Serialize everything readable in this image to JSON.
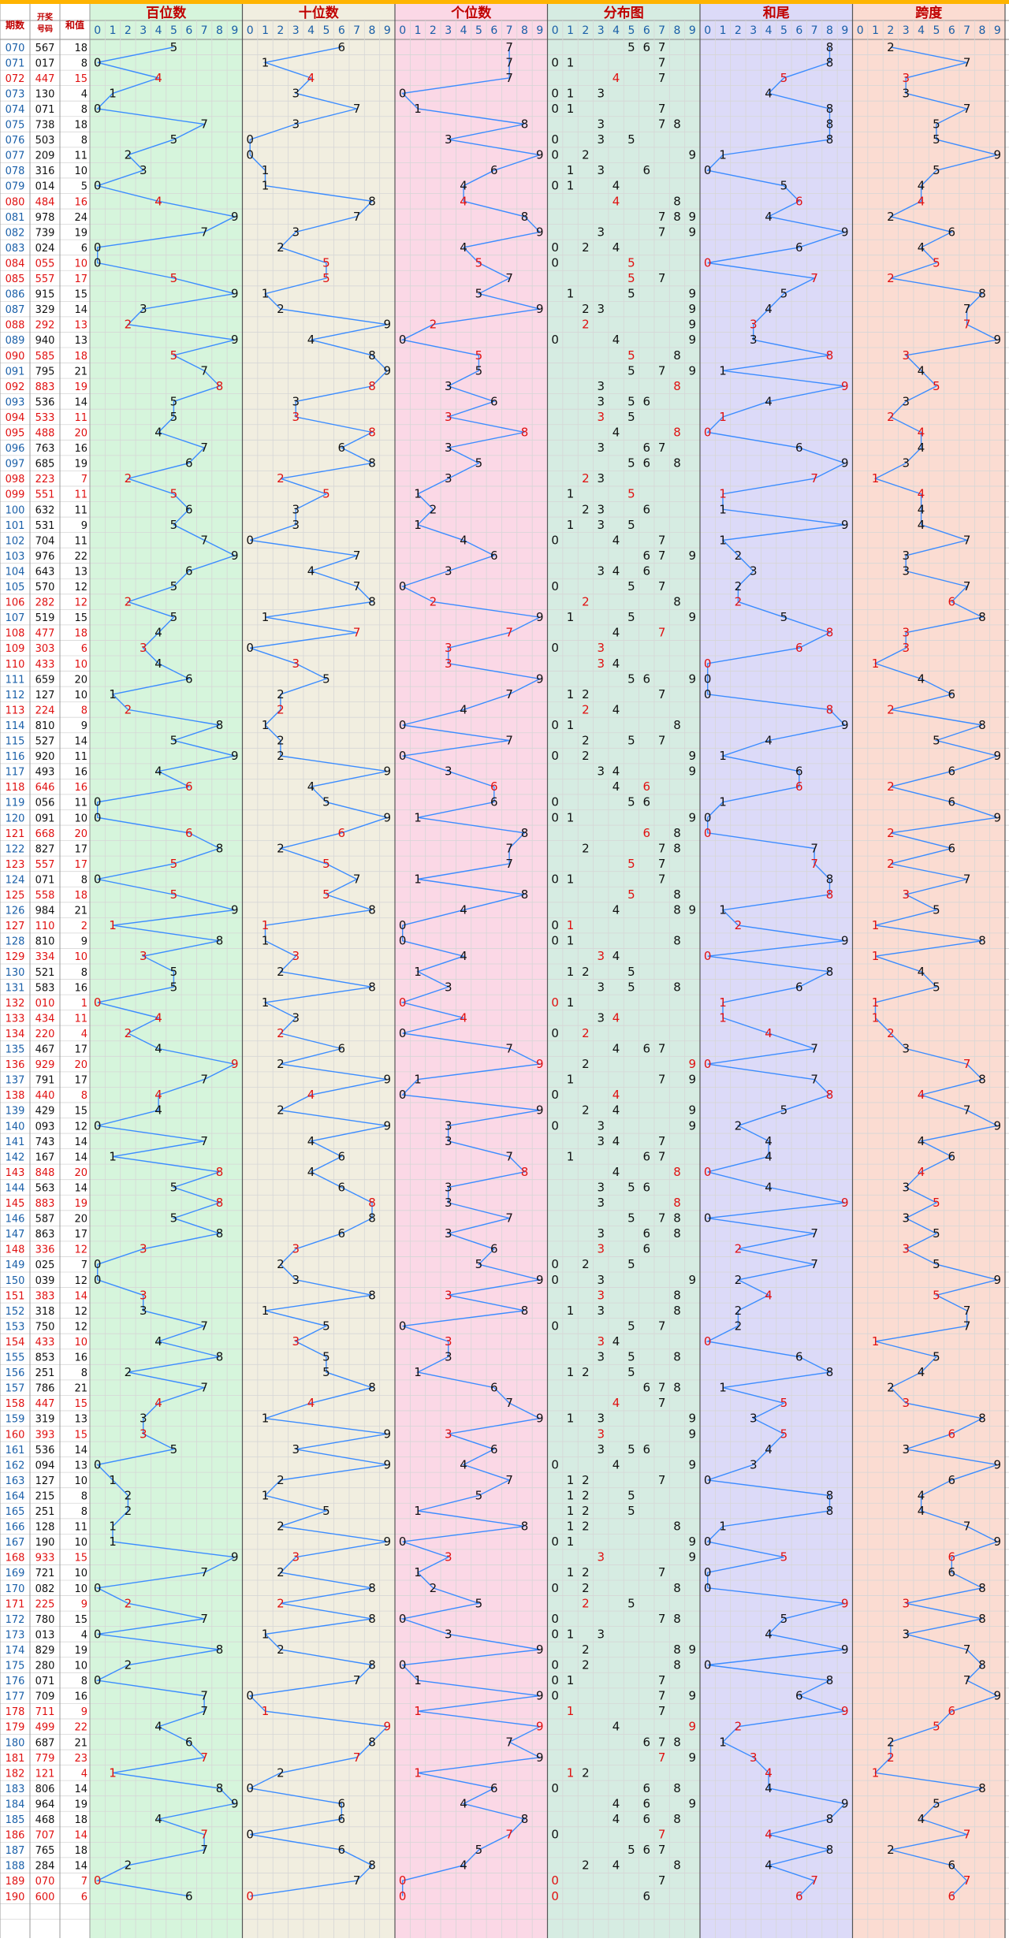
{
  "header": {
    "period_label": "期数",
    "draw_label_1": "开奖",
    "draw_label_2": "号码",
    "sum_label": "和值",
    "sections": [
      {
        "key": "hundreds",
        "title": "百位数"
      },
      {
        "key": "tens",
        "title": "十位数"
      },
      {
        "key": "ones",
        "title": "个位数"
      },
      {
        "key": "dist",
        "title": "分布图"
      },
      {
        "key": "tail",
        "title": "和尾"
      },
      {
        "key": "span",
        "title": "跨度"
      }
    ],
    "digits": [
      "0",
      "1",
      "2",
      "3",
      "4",
      "5",
      "6",
      "7",
      "8",
      "9"
    ]
  },
  "colors": {
    "top_bar": "#ffb400",
    "grid": "#d6d6d6",
    "period": "#1a5fa8",
    "red": "#e01010",
    "black": "#111111",
    "line": "#3b8cff",
    "section_titles": "#c00000",
    "digit_labels": "#1a5fa8",
    "bg_left": "#ffffff",
    "bg_hundreds": "#d6f5dc",
    "bg_tens": "#f1eee0",
    "bg_ones": "#fbd8e6",
    "bg_dist": "#d6ece2",
    "bg_tail": "#dcdaf8",
    "bg_span": "#fbdcd2"
  },
  "chart_data": {
    "type": "table",
    "description_fields": [
      "period",
      "number",
      "sum",
      "tail",
      "span"
    ],
    "rows": [
      {
        "period": "070",
        "number": "567",
        "sum": 18
      },
      {
        "period": "071",
        "number": "017",
        "sum": 8
      },
      {
        "period": "072",
        "number": "447",
        "sum": 15
      },
      {
        "period": "073",
        "number": "130",
        "sum": 4
      },
      {
        "period": "074",
        "number": "071",
        "sum": 8
      },
      {
        "period": "075",
        "number": "738",
        "sum": 18
      },
      {
        "period": "076",
        "number": "503",
        "sum": 8
      },
      {
        "period": "077",
        "number": "209",
        "sum": 11
      },
      {
        "period": "078",
        "number": "316",
        "sum": 10
      },
      {
        "period": "079",
        "number": "014",
        "sum": 5
      },
      {
        "period": "080",
        "number": "484",
        "sum": 16
      },
      {
        "period": "081",
        "number": "978",
        "sum": 24
      },
      {
        "period": "082",
        "number": "739",
        "sum": 19
      },
      {
        "period": "083",
        "number": "024",
        "sum": 6
      },
      {
        "period": "084",
        "number": "055",
        "sum": 10
      },
      {
        "period": "085",
        "number": "557",
        "sum": 17
      },
      {
        "period": "086",
        "number": "915",
        "sum": 15
      },
      {
        "period": "087",
        "number": "329",
        "sum": 14
      },
      {
        "period": "088",
        "number": "292",
        "sum": 13
      },
      {
        "period": "089",
        "number": "940",
        "sum": 13
      },
      {
        "period": "090",
        "number": "585",
        "sum": 18
      },
      {
        "period": "091",
        "number": "795",
        "sum": 21
      },
      {
        "period": "092",
        "number": "883",
        "sum": 19
      },
      {
        "period": "093",
        "number": "536",
        "sum": 14
      },
      {
        "period": "094",
        "number": "533",
        "sum": 11
      },
      {
        "period": "095",
        "number": "488",
        "sum": 20
      },
      {
        "period": "096",
        "number": "763",
        "sum": 16
      },
      {
        "period": "097",
        "number": "685",
        "sum": 19
      },
      {
        "period": "098",
        "number": "223",
        "sum": 7
      },
      {
        "period": "099",
        "number": "551",
        "sum": 11
      },
      {
        "period": "100",
        "number": "632",
        "sum": 11
      },
      {
        "period": "101",
        "number": "531",
        "sum": 9
      },
      {
        "period": "102",
        "number": "704",
        "sum": 11
      },
      {
        "period": "103",
        "number": "976",
        "sum": 22
      },
      {
        "period": "104",
        "number": "643",
        "sum": 13
      },
      {
        "period": "105",
        "number": "570",
        "sum": 12
      },
      {
        "period": "106",
        "number": "282",
        "sum": 12
      },
      {
        "period": "107",
        "number": "519",
        "sum": 15
      },
      {
        "period": "108",
        "number": "477",
        "sum": 18
      },
      {
        "period": "109",
        "number": "303",
        "sum": 6
      },
      {
        "period": "110",
        "number": "433",
        "sum": 10
      },
      {
        "period": "111",
        "number": "659",
        "sum": 20
      },
      {
        "period": "112",
        "number": "127",
        "sum": 10
      },
      {
        "period": "113",
        "number": "224",
        "sum": 8
      },
      {
        "period": "114",
        "number": "810",
        "sum": 9
      },
      {
        "period": "115",
        "number": "527",
        "sum": 14
      },
      {
        "period": "116",
        "number": "920",
        "sum": 11
      },
      {
        "period": "117",
        "number": "493",
        "sum": 16
      },
      {
        "period": "118",
        "number": "646",
        "sum": 16
      },
      {
        "period": "119",
        "number": "056",
        "sum": 11
      },
      {
        "period": "120",
        "number": "091",
        "sum": 10
      },
      {
        "period": "121",
        "number": "668",
        "sum": 20
      },
      {
        "period": "122",
        "number": "827",
        "sum": 17
      },
      {
        "period": "123",
        "number": "557",
        "sum": 17
      },
      {
        "period": "124",
        "number": "071",
        "sum": 8
      },
      {
        "period": "125",
        "number": "558",
        "sum": 18
      },
      {
        "period": "126",
        "number": "984",
        "sum": 21
      },
      {
        "period": "127",
        "number": "110",
        "sum": 2
      },
      {
        "period": "128",
        "number": "810",
        "sum": 9
      },
      {
        "period": "129",
        "number": "334",
        "sum": 10
      },
      {
        "period": "130",
        "number": "521",
        "sum": 8
      },
      {
        "period": "131",
        "number": "583",
        "sum": 16
      },
      {
        "period": "132",
        "number": "010",
        "sum": 1
      },
      {
        "period": "133",
        "number": "434",
        "sum": 11
      },
      {
        "period": "134",
        "number": "220",
        "sum": 4
      },
      {
        "period": "135",
        "number": "467",
        "sum": 17
      },
      {
        "period": "136",
        "number": "929",
        "sum": 20
      },
      {
        "period": "137",
        "number": "791",
        "sum": 17
      },
      {
        "period": "138",
        "number": "440",
        "sum": 8
      },
      {
        "period": "139",
        "number": "429",
        "sum": 15
      },
      {
        "period": "140",
        "number": "093",
        "sum": 12
      },
      {
        "period": "141",
        "number": "743",
        "sum": 14
      },
      {
        "period": "142",
        "number": "167",
        "sum": 14
      },
      {
        "period": "143",
        "number": "848",
        "sum": 20
      },
      {
        "period": "144",
        "number": "563",
        "sum": 14
      },
      {
        "period": "145",
        "number": "883",
        "sum": 19
      },
      {
        "period": "146",
        "number": "587",
        "sum": 20
      },
      {
        "period": "147",
        "number": "863",
        "sum": 17
      },
      {
        "period": "148",
        "number": "336",
        "sum": 12
      },
      {
        "period": "149",
        "number": "025",
        "sum": 7
      },
      {
        "period": "150",
        "number": "039",
        "sum": 12
      },
      {
        "period": "151",
        "number": "383",
        "sum": 14
      },
      {
        "period": "152",
        "number": "318",
        "sum": 12
      },
      {
        "period": "153",
        "number": "750",
        "sum": 12
      },
      {
        "period": "154",
        "number": "433",
        "sum": 10
      },
      {
        "period": "155",
        "number": "853",
        "sum": 16
      },
      {
        "period": "156",
        "number": "251",
        "sum": 8
      },
      {
        "period": "157",
        "number": "786",
        "sum": 21
      },
      {
        "period": "158",
        "number": "447",
        "sum": 15
      },
      {
        "period": "159",
        "number": "319",
        "sum": 13
      },
      {
        "period": "160",
        "number": "393",
        "sum": 15
      },
      {
        "period": "161",
        "number": "536",
        "sum": 14
      },
      {
        "period": "162",
        "number": "094",
        "sum": 13
      },
      {
        "period": "163",
        "number": "127",
        "sum": 10
      },
      {
        "period": "164",
        "number": "215",
        "sum": 8
      },
      {
        "period": "165",
        "number": "251",
        "sum": 8
      },
      {
        "period": "166",
        "number": "128",
        "sum": 11
      },
      {
        "period": "167",
        "number": "190",
        "sum": 10
      },
      {
        "period": "168",
        "number": "933",
        "sum": 15
      },
      {
        "period": "169",
        "number": "721",
        "sum": 10
      },
      {
        "period": "170",
        "number": "082",
        "sum": 10
      },
      {
        "period": "171",
        "number": "225",
        "sum": 9
      },
      {
        "period": "172",
        "number": "780",
        "sum": 15
      },
      {
        "period": "173",
        "number": "013",
        "sum": 4
      },
      {
        "period": "174",
        "number": "829",
        "sum": 19
      },
      {
        "period": "175",
        "number": "280",
        "sum": 10
      },
      {
        "period": "176",
        "number": "071",
        "sum": 8
      },
      {
        "period": "177",
        "number": "709",
        "sum": 16
      },
      {
        "period": "178",
        "number": "711",
        "sum": 9
      },
      {
        "period": "179",
        "number": "499",
        "sum": 22
      },
      {
        "period": "180",
        "number": "687",
        "sum": 21
      },
      {
        "period": "181",
        "number": "779",
        "sum": 23
      },
      {
        "period": "182",
        "number": "121",
        "sum": 4
      },
      {
        "period": "183",
        "number": "806",
        "sum": 14
      },
      {
        "period": "184",
        "number": "964",
        "sum": 19
      },
      {
        "period": "185",
        "number": "468",
        "sum": 18
      },
      {
        "period": "186",
        "number": "707",
        "sum": 14
      },
      {
        "period": "187",
        "number": "765",
        "sum": 18
      },
      {
        "period": "188",
        "number": "284",
        "sum": 14
      },
      {
        "period": "189",
        "number": "070",
        "sum": 7
      },
      {
        "period": "190",
        "number": "600",
        "sum": 6
      }
    ]
  }
}
